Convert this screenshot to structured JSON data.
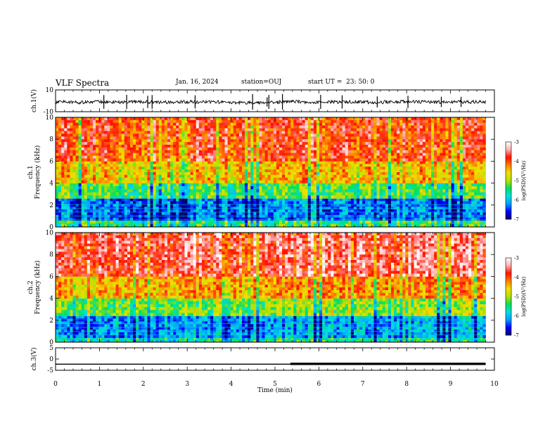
{
  "header": {
    "title": "VLF Spectra",
    "date": "Jan. 16, 2024",
    "station": "station=OUJ",
    "start": "start UT =  23: 50: 0"
  },
  "chart_data": [
    {
      "type": "line",
      "panel": "ch1-waveform",
      "ylabel": "ch.1(V)",
      "ylim": [
        -10,
        10
      ],
      "y_ticks": [
        "10",
        "-10"
      ],
      "x": [
        0,
        0.5,
        1,
        1.5,
        2,
        2.5,
        3,
        3.5,
        4,
        4.5,
        5,
        5.5,
        6,
        6.5,
        7,
        7.5,
        8,
        8.5,
        9,
        9.5,
        9.8
      ],
      "series": [
        {
          "values": [
            -1,
            -1.5,
            -0.8,
            -1.2,
            -1,
            -1.4,
            -0.9,
            -1.1,
            -1.3,
            -2,
            -1.2,
            -0.9,
            -1.1,
            -1,
            -1.3,
            -1.2,
            -0.8,
            -1.1,
            -1.2,
            -1,
            -1
          ]
        }
      ],
      "spike_times": [
        1.1,
        1.62,
        2.1,
        2.2,
        3.18,
        4.49,
        4.82,
        4.86,
        5.17,
        6.04,
        6.53,
        7.33,
        8.03,
        8.79,
        9.24
      ]
    },
    {
      "type": "heatmap",
      "panel": "ch1-spectrogram",
      "ylabel": "ch.1\nFrequency (kHz)",
      "ylim": [
        0,
        10
      ],
      "y_ticks": [
        "0",
        "2",
        "4",
        "6",
        "8",
        "10"
      ],
      "xlim": [
        0,
        9.8
      ],
      "colorbar": {
        "label": "log(PSD)(V²/Hz)",
        "range": [
          -7,
          -3
        ],
        "ticks": [
          "-3",
          "-4",
          "-5",
          "-6",
          "-7"
        ],
        "colors": [
          "#000070",
          "#0000ff",
          "#00a0ff",
          "#00e0e0",
          "#00e060",
          "#b8e000",
          "#f0e000",
          "#ff8000",
          "#ff1000",
          "#ffb0b0",
          "#ffffff"
        ]
      },
      "bands": [
        {
          "from_khz": 0,
          "to_khz": 0.6,
          "level": -5.4
        },
        {
          "from_khz": 0.6,
          "to_khz": 2.6,
          "level": -6.3
        },
        {
          "from_khz": 2.6,
          "to_khz": 4,
          "level": -5.3
        },
        {
          "from_khz": 4,
          "to_khz": 6,
          "level": -4.5
        },
        {
          "from_khz": 6,
          "to_khz": 10,
          "level": -3.9
        }
      ]
    },
    {
      "type": "heatmap",
      "panel": "ch2-spectrogram",
      "ylabel": "ch.2\nFrequency (kHz)",
      "ylim": [
        0,
        10
      ],
      "y_ticks": [
        "0",
        "2",
        "4",
        "6",
        "8",
        "10"
      ],
      "xlim": [
        0,
        9.8
      ],
      "colorbar": {
        "label": "log(PSD)(V²/Hz)",
        "range": [
          -7,
          -3
        ],
        "ticks": [
          "-3",
          "-4",
          "-5",
          "-6",
          "-7"
        ],
        "colors": [
          "#000070",
          "#0000ff",
          "#00a0ff",
          "#00e0e0",
          "#00e060",
          "#b8e000",
          "#f0e000",
          "#ff8000",
          "#ff1000",
          "#ffb0b0",
          "#ffffff"
        ]
      },
      "bands": [
        {
          "from_khz": 0,
          "to_khz": 0.4,
          "level": -5.6
        },
        {
          "from_khz": 0.4,
          "to_khz": 2.4,
          "level": -6.1
        },
        {
          "from_khz": 2.4,
          "to_khz": 4,
          "level": -5.1
        },
        {
          "from_khz": 4,
          "to_khz": 6,
          "level": -4.3
        },
        {
          "from_khz": 6,
          "to_khz": 10,
          "level": -3.6
        }
      ]
    },
    {
      "type": "line",
      "panel": "ch3-waveform",
      "ylabel": "ch.3(V)",
      "ylim": [
        -5,
        5
      ],
      "y_ticks": [
        "5",
        "0",
        "-5"
      ],
      "x": [
        0,
        5.35,
        5.35,
        9.8
      ],
      "series": [
        {
          "values": [
            -2.3,
            -2.3,
            -2.3,
            -2.3
          ]
        }
      ],
      "thick_from": 5.35,
      "xlabel": "Time (min)",
      "xlim": [
        0,
        10
      ],
      "x_ticks": [
        "0",
        "1",
        "2",
        "3",
        "4",
        "5",
        "6",
        "7",
        "8",
        "9",
        "10"
      ]
    }
  ]
}
